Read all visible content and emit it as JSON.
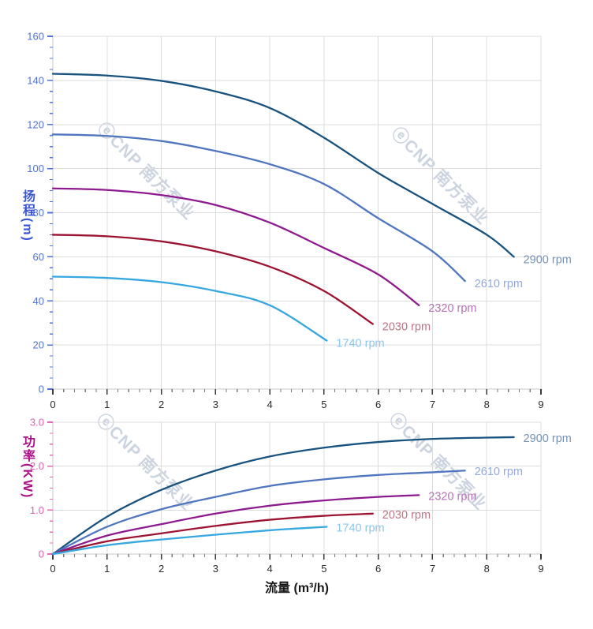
{
  "watermark": {
    "text": "ⓔCNP 南方泵业"
  },
  "chart_data": [
    {
      "type": "line",
      "name": "head-vs-flow",
      "ylabel": "扬程(m)",
      "xlabel": "",
      "x_range": [
        0,
        9
      ],
      "y_range": [
        0,
        160
      ],
      "x_ticks": [
        "0",
        "1",
        "2",
        "3",
        "4",
        "5",
        "6",
        "7",
        "8",
        "9"
      ],
      "y_ticks": [
        "0",
        "20",
        "40",
        "60",
        "80",
        "100",
        "120",
        "140",
        "160"
      ],
      "x_minor_per_major": 5,
      "y_minor_per_major": 4,
      "grid": true,
      "legend_position": "curve-end-labels",
      "colors": {
        "y_text": "#5272d8",
        "y_tick": "#5272d8",
        "x_text": "#2b2b2b",
        "grid": "#dcdcdc",
        "spine": "#c9c9c9"
      },
      "series": [
        {
          "name": "2900 rpm",
          "color": "#18537f",
          "label_color": "#7693b3",
          "points": [
            [
              0,
              143
            ],
            [
              1,
              142.2
            ],
            [
              2,
              139.8
            ],
            [
              3,
              135
            ],
            [
              4,
              127.5
            ],
            [
              5,
              114
            ],
            [
              6,
              98
            ],
            [
              7,
              84
            ],
            [
              8,
              70
            ],
            [
              8.5,
              60
            ]
          ]
        },
        {
          "name": "2610 rpm",
          "color": "#5076c0",
          "label_color": "#93a9db",
          "points": [
            [
              0,
              115.5
            ],
            [
              1,
              114.8
            ],
            [
              2,
              112.5
            ],
            [
              3,
              108
            ],
            [
              4,
              102
            ],
            [
              5,
              93
            ],
            [
              6,
              77.5
            ],
            [
              7,
              62.5
            ],
            [
              7.6,
              49
            ]
          ]
        },
        {
          "name": "2320 rpm",
          "color": "#8e1a90",
          "label_color": "#b472b6",
          "points": [
            [
              0,
              91
            ],
            [
              1,
              90.3
            ],
            [
              2,
              88
            ],
            [
              3,
              83.5
            ],
            [
              4,
              75.5
            ],
            [
              5,
              64
            ],
            [
              6,
              52
            ],
            [
              6.75,
              38
            ]
          ]
        },
        {
          "name": "2030 rpm",
          "color": "#9c1432",
          "label_color": "#bd7483",
          "points": [
            [
              0,
              70
            ],
            [
              1,
              69.3
            ],
            [
              2,
              67
            ],
            [
              3,
              62.5
            ],
            [
              4,
              55.5
            ],
            [
              5,
              44.5
            ],
            [
              5.9,
              29.5
            ]
          ]
        },
        {
          "name": "1740 rpm",
          "color": "#37a7e0",
          "label_color": "#8cc6ec",
          "points": [
            [
              0,
              51
            ],
            [
              1,
              50.4
            ],
            [
              2,
              48.5
            ],
            [
              3,
              44.5
            ],
            [
              4,
              38
            ],
            [
              5.05,
              22
            ]
          ]
        }
      ]
    },
    {
      "type": "line",
      "name": "power-vs-flow",
      "ylabel": "功率(KW)",
      "xlabel": "流量 (m³/h)",
      "x_range": [
        0,
        9
      ],
      "y_range": [
        0,
        3
      ],
      "x_ticks": [
        "0",
        "1",
        "2",
        "3",
        "4",
        "5",
        "6",
        "7",
        "8",
        "9"
      ],
      "y_ticks": [
        "0",
        "1.0",
        "2.0",
        "3.0"
      ],
      "x_minor_per_major": 5,
      "y_minor_per_major": 4,
      "grid": true,
      "legend_position": "curve-end-labels",
      "colors": {
        "y_text": "#dd63ad",
        "y_tick": "#e46db2",
        "x_text": "#2b2b2b",
        "grid": "#dcdcdc",
        "spine": "#c9c9c9"
      },
      "series": [
        {
          "name": "2900 rpm",
          "color": "#18537f",
          "label_color": "#7693b3",
          "points": [
            [
              0,
              0
            ],
            [
              1,
              0.85
            ],
            [
              2,
              1.46
            ],
            [
              3,
              1.9
            ],
            [
              4,
              2.22
            ],
            [
              5,
              2.42
            ],
            [
              6,
              2.55
            ],
            [
              7,
              2.62
            ],
            [
              8,
              2.65
            ],
            [
              8.5,
              2.66
            ]
          ]
        },
        {
          "name": "2610 rpm",
          "color": "#5076c0",
          "label_color": "#93a9db",
          "points": [
            [
              0,
              0
            ],
            [
              1,
              0.62
            ],
            [
              2,
              1.02
            ],
            [
              3,
              1.3
            ],
            [
              4,
              1.55
            ],
            [
              5,
              1.7
            ],
            [
              6,
              1.8
            ],
            [
              7,
              1.86
            ],
            [
              7.6,
              1.9
            ]
          ]
        },
        {
          "name": "2320 rpm",
          "color": "#8e1a90",
          "label_color": "#b472b6",
          "points": [
            [
              0,
              0
            ],
            [
              1,
              0.42
            ],
            [
              2,
              0.68
            ],
            [
              3,
              0.92
            ],
            [
              4,
              1.1
            ],
            [
              5,
              1.22
            ],
            [
              6,
              1.3
            ],
            [
              6.75,
              1.34
            ]
          ]
        },
        {
          "name": "2030 rpm",
          "color": "#9c1432",
          "label_color": "#bd7483",
          "points": [
            [
              0,
              0
            ],
            [
              1,
              0.29
            ],
            [
              2,
              0.47
            ],
            [
              3,
              0.64
            ],
            [
              4,
              0.78
            ],
            [
              5,
              0.87
            ],
            [
              5.9,
              0.92
            ]
          ]
        },
        {
          "name": "1740 rpm",
          "color": "#37a7e0",
          "label_color": "#8cc6ec",
          "points": [
            [
              0,
              0
            ],
            [
              1,
              0.2
            ],
            [
              2,
              0.33
            ],
            [
              3,
              0.44
            ],
            [
              4,
              0.54
            ],
            [
              4.5,
              0.58
            ],
            [
              5.05,
              0.62
            ]
          ]
        }
      ]
    }
  ]
}
